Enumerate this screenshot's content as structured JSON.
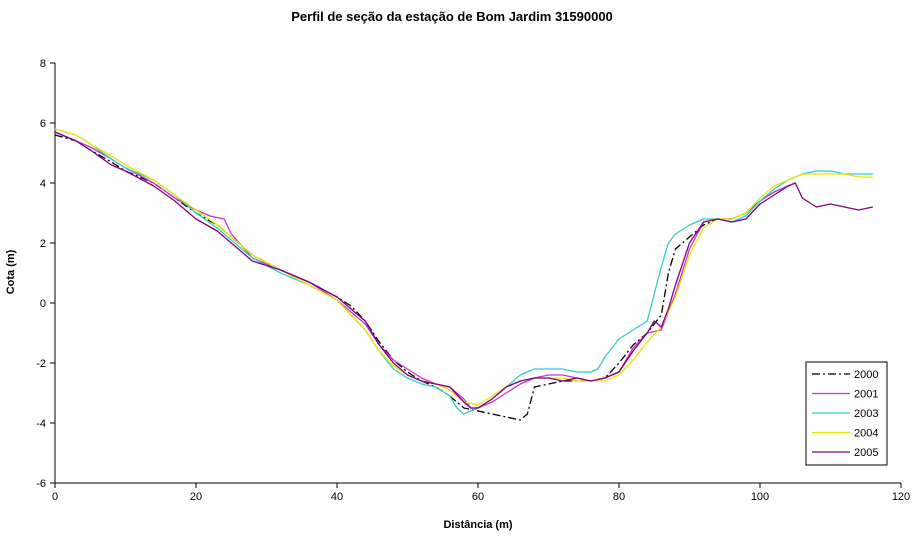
{
  "chart_data": {
    "type": "line",
    "title": "Perfil de seção da estação de Bom Jardim 31590000",
    "xlabel": "Distância (m)",
    "ylabel": "Cota (m)",
    "xlim": [
      0,
      120
    ],
    "ylim": [
      -6,
      8
    ],
    "xticks": [
      0,
      20,
      40,
      60,
      80,
      100,
      120
    ],
    "yticks": [
      -6,
      -4,
      -2,
      0,
      2,
      4,
      6,
      8
    ],
    "grid": false,
    "legend_position": "bottom-right",
    "series": [
      {
        "name": "2000",
        "color": "#000000",
        "dash": "dash-dot",
        "x": [
          0,
          3,
          5,
          8,
          10,
          14,
          17,
          20,
          23,
          25,
          28,
          32,
          36,
          40,
          42,
          44,
          46,
          48,
          50,
          52,
          54,
          56,
          58,
          60,
          62,
          64,
          66,
          67,
          68,
          70,
          72,
          74,
          76,
          78,
          80,
          82,
          84,
          86,
          87,
          88,
          90,
          92,
          94,
          96,
          98,
          100,
          102,
          104,
          105
        ],
        "y": [
          5.6,
          5.4,
          5.1,
          4.7,
          4.4,
          4.0,
          3.5,
          3.0,
          2.6,
          2.2,
          1.6,
          1.1,
          0.7,
          0.2,
          -0.1,
          -0.6,
          -1.3,
          -1.9,
          -2.3,
          -2.6,
          -2.8,
          -3.1,
          -3.5,
          -3.6,
          -3.7,
          -3.8,
          -3.9,
          -3.7,
          -2.8,
          -2.7,
          -2.6,
          -2.6,
          -2.6,
          -2.5,
          -2.0,
          -1.4,
          -1.0,
          -0.4,
          1.0,
          1.8,
          2.2,
          2.6,
          2.8,
          2.8,
          3.0,
          3.4,
          3.7,
          3.9,
          4.0
        ]
      },
      {
        "name": "2001",
        "color": "#cc33cc",
        "dash": "solid",
        "x": [
          0,
          3,
          5,
          8,
          10,
          14,
          17,
          20,
          22,
          24,
          25,
          28,
          32,
          36,
          40,
          42,
          44,
          46,
          48,
          50,
          52,
          54,
          56,
          58,
          59,
          60,
          62,
          64,
          66,
          68,
          70,
          72,
          74,
          76,
          78,
          80,
          82,
          84,
          86,
          88,
          90,
          92,
          94,
          96,
          98,
          100,
          102,
          104
        ],
        "y": [
          5.7,
          5.4,
          5.2,
          4.8,
          4.5,
          4.0,
          3.5,
          3.1,
          2.9,
          2.8,
          2.3,
          1.5,
          1.1,
          0.7,
          0.1,
          -0.3,
          -0.7,
          -1.4,
          -1.9,
          -2.2,
          -2.5,
          -2.7,
          -2.8,
          -3.2,
          -3.5,
          -3.5,
          -3.3,
          -3.0,
          -2.7,
          -2.5,
          -2.4,
          -2.4,
          -2.5,
          -2.6,
          -2.5,
          -2.3,
          -1.5,
          -1.0,
          -0.9,
          0.3,
          1.8,
          2.7,
          2.8,
          2.8,
          3.0,
          3.4,
          3.7,
          3.9
        ]
      },
      {
        "name": "2003",
        "color": "#33cccc",
        "dash": "solid",
        "x": [
          0,
          3,
          5,
          8,
          10,
          14,
          17,
          20,
          23,
          25,
          28,
          32,
          36,
          40,
          42,
          44,
          46,
          48,
          50,
          52,
          54,
          56,
          57,
          58,
          59,
          60,
          62,
          64,
          66,
          68,
          70,
          72,
          74,
          76,
          77,
          78,
          80,
          82,
          84,
          86,
          87,
          88,
          90,
          92,
          94,
          96,
          98,
          100,
          102,
          104,
          106,
          108,
          110,
          112,
          114,
          116
        ],
        "y": [
          5.8,
          5.6,
          5.3,
          4.8,
          4.5,
          4.1,
          3.6,
          3.0,
          2.5,
          2.1,
          1.5,
          1.0,
          0.6,
          0.1,
          -0.4,
          -0.9,
          -1.6,
          -2.2,
          -2.5,
          -2.7,
          -2.8,
          -3.1,
          -3.5,
          -3.7,
          -3.6,
          -3.5,
          -3.2,
          -2.8,
          -2.4,
          -2.2,
          -2.2,
          -2.2,
          -2.3,
          -2.3,
          -2.2,
          -1.8,
          -1.2,
          -0.9,
          -0.6,
          1.2,
          2.0,
          2.3,
          2.6,
          2.8,
          2.8,
          2.7,
          2.9,
          3.4,
          3.8,
          4.1,
          4.3,
          4.4,
          4.4,
          4.3,
          4.3,
          4.3
        ]
      },
      {
        "name": "2004",
        "color": "#e6e600",
        "dash": "solid",
        "x": [
          0,
          3,
          5,
          8,
          10,
          14,
          17,
          20,
          23,
          25,
          28,
          32,
          36,
          40,
          42,
          44,
          46,
          48,
          50,
          52,
          54,
          56,
          58,
          60,
          62,
          64,
          66,
          68,
          70,
          72,
          74,
          76,
          78,
          80,
          82,
          84,
          86,
          88,
          90,
          92,
          94,
          96,
          98,
          100,
          102,
          104,
          106,
          108,
          110,
          112,
          114,
          116
        ],
        "y": [
          5.8,
          5.6,
          5.3,
          4.9,
          4.6,
          4.1,
          3.6,
          3.1,
          2.6,
          2.2,
          1.6,
          1.1,
          0.6,
          0.1,
          -0.4,
          -0.9,
          -1.6,
          -2.1,
          -2.4,
          -2.6,
          -2.7,
          -2.9,
          -3.3,
          -3.4,
          -3.1,
          -2.8,
          -2.6,
          -2.5,
          -2.5,
          -2.5,
          -2.6,
          -2.6,
          -2.6,
          -2.4,
          -1.9,
          -1.3,
          -0.8,
          0.2,
          1.6,
          2.5,
          2.8,
          2.8,
          3.0,
          3.5,
          3.9,
          4.1,
          4.3,
          4.3,
          4.3,
          4.3,
          4.2,
          4.2
        ]
      },
      {
        "name": "2005",
        "color": "#800080",
        "dash": "solid",
        "x": [
          0,
          3,
          5,
          8,
          10,
          14,
          17,
          20,
          23,
          25,
          28,
          32,
          36,
          40,
          42,
          44,
          46,
          48,
          50,
          52,
          54,
          56,
          58,
          59,
          60,
          62,
          64,
          66,
          68,
          70,
          72,
          74,
          76,
          78,
          80,
          82,
          84,
          85,
          86,
          87,
          88,
          90,
          92,
          94,
          96,
          98,
          100,
          102,
          104,
          105,
          106,
          108,
          110,
          112,
          114,
          116
        ],
        "y": [
          5.7,
          5.4,
          5.1,
          4.6,
          4.4,
          3.9,
          3.4,
          2.8,
          2.4,
          2.0,
          1.4,
          1.1,
          0.7,
          0.2,
          -0.2,
          -0.6,
          -1.4,
          -2.0,
          -2.4,
          -2.6,
          -2.7,
          -2.8,
          -3.3,
          -3.5,
          -3.5,
          -3.2,
          -2.8,
          -2.6,
          -2.5,
          -2.5,
          -2.6,
          -2.5,
          -2.6,
          -2.5,
          -2.3,
          -1.6,
          -1.0,
          -0.6,
          -0.8,
          -0.2,
          0.6,
          2.0,
          2.7,
          2.8,
          2.7,
          2.8,
          3.3,
          3.6,
          3.9,
          4.0,
          3.5,
          3.2,
          3.3,
          3.2,
          3.1,
          3.2
        ]
      }
    ]
  }
}
